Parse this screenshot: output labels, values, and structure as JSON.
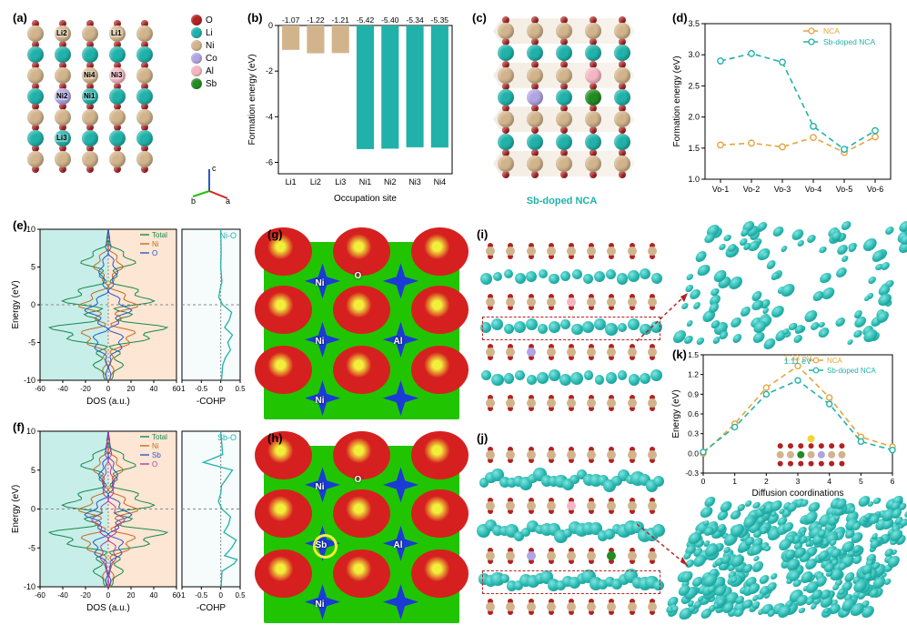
{
  "colors": {
    "O": "#b22222",
    "Li": "#20b2aa",
    "Ni": "#d2b48c",
    "Co": "#b0a4e3",
    "Al": "#f4b6c2",
    "Sb": "#228b22",
    "bar_li": "#d2b48c",
    "bar_ni": "#20b2aa",
    "nca": "#e6a43c",
    "sbdoped": "#20b2aa",
    "elf_bg": "#21c400",
    "elf_red": "#d62020",
    "elf_blue": "#1b3bd6",
    "elf_ring": "#f2ef3b",
    "density": "#2bb5ae",
    "grid": "#888888",
    "bg_left": "#c8eee9",
    "bg_right": "#fde6d4"
  },
  "typography": {
    "label_fontsize": 13,
    "axis_fontsize": 10,
    "tick_fontsize": 9
  },
  "panels": {
    "a": {
      "label": "(a)"
    },
    "b": {
      "label": "(b)",
      "type": "bar",
      "xlabel": "Occupation site",
      "ylabel": "Formation energy (eV)",
      "ylim": [
        0,
        -6.5
      ],
      "yticks": [
        0,
        -2,
        -4,
        -6
      ],
      "categories": [
        "Li1",
        "Li2",
        "Li3",
        "Ni1",
        "Ni2",
        "Ni3",
        "Ni4"
      ],
      "values": [
        -1.07,
        -1.22,
        -1.21,
        -5.42,
        -5.4,
        -5.34,
        -5.35
      ],
      "value_labels": [
        "-1.07",
        "-1.22",
        "-1.21",
        "-5.42",
        "-5.40",
        "-5.34",
        "-5.35"
      ],
      "bar_colors": [
        "#d2b48c",
        "#d2b48c",
        "#d2b48c",
        "#20b2aa",
        "#20b2aa",
        "#20b2aa",
        "#20b2aa"
      ],
      "bar_width": 0.7
    },
    "c": {
      "label": "(c)",
      "caption": "Sb-doped NCA"
    },
    "d": {
      "label": "(d)",
      "type": "line",
      "xlabel": "",
      "ylabel": "Formation energy (eV)",
      "ylim": [
        1.0,
        3.5
      ],
      "yticks": [
        1.0,
        1.5,
        2.0,
        2.5,
        3.0,
        3.5
      ],
      "categories": [
        "Vo-1",
        "Vo-2",
        "Vo-3",
        "Vo-4",
        "Vo-5",
        "Vo-6"
      ],
      "series": [
        {
          "name": "NCA",
          "color": "#e6a43c",
          "marker": "o",
          "dash": "6,4",
          "values": [
            1.55,
            1.58,
            1.52,
            1.67,
            1.43,
            1.68
          ]
        },
        {
          "name": "Sb-doped NCA",
          "color": "#20b2aa",
          "marker": "o",
          "dash": "6,4",
          "values": [
            2.9,
            3.02,
            2.88,
            1.85,
            1.48,
            1.78
          ]
        }
      ]
    },
    "e": {
      "label": "(e)",
      "type": "dos+cohp",
      "ylabel": "Energy (eV)",
      "xlabel_dos": "DOS (a.u.)",
      "xlabel_cohp": "-COHP",
      "ylim": [
        -10,
        10
      ],
      "yticks": [
        -10,
        -5,
        0,
        5,
        10
      ],
      "dos_xlim": [
        -60,
        60
      ],
      "dos_xticks": [
        -60,
        -40,
        -20,
        0,
        20,
        40,
        60
      ],
      "cohp_xlim": [
        -1.0,
        0.5
      ],
      "cohp_xticks": [
        -1.0,
        -0.5,
        0.0,
        0.5
      ],
      "cohp_label": "Ni-O",
      "cohp_color": "#20b2aa",
      "dos_series": [
        {
          "name": "Total",
          "color": "#178a49"
        },
        {
          "name": "Ni",
          "color": "#c46b1f"
        },
        {
          "name": "O",
          "color": "#2a57c9"
        }
      ],
      "cohp_curve": [
        [
          -10,
          0.02
        ],
        [
          -8,
          0.05
        ],
        [
          -7,
          0.12
        ],
        [
          -6,
          0.25
        ],
        [
          -5,
          0.18
        ],
        [
          -4,
          0.3
        ],
        [
          -3,
          0.1
        ],
        [
          -2,
          0.22
        ],
        [
          -1,
          0.28
        ],
        [
          0,
          0.05
        ],
        [
          1,
          -0.05
        ],
        [
          2,
          -0.02
        ],
        [
          3,
          0.03
        ],
        [
          5,
          0.0
        ],
        [
          7,
          0.01
        ],
        [
          10,
          0.0
        ]
      ]
    },
    "f": {
      "label": "(f)",
      "type": "dos+cohp",
      "ylabel": "Energy (eV)",
      "xlabel_dos": "DOS (a.u.)",
      "xlabel_cohp": "-COHP",
      "ylim": [
        -10,
        10
      ],
      "yticks": [
        -10,
        -5,
        0,
        5,
        10
      ],
      "dos_xlim": [
        -60,
        60
      ],
      "dos_xticks": [
        -60,
        -40,
        -20,
        0,
        20,
        40,
        60
      ],
      "cohp_xlim": [
        -1.0,
        0.5
      ],
      "cohp_xticks": [
        -1.0,
        -0.5,
        0.0,
        0.5
      ],
      "cohp_label": "Sb-O",
      "cohp_color": "#20b2aa",
      "dos_series": [
        {
          "name": "Total",
          "color": "#178a49"
        },
        {
          "name": "Ni",
          "color": "#c46b1f"
        },
        {
          "name": "Sb",
          "color": "#2a57c9"
        },
        {
          "name": "O",
          "color": "#b03a9e"
        }
      ],
      "cohp_curve": [
        [
          -10,
          0.01
        ],
        [
          -8,
          0.03
        ],
        [
          -7,
          0.35
        ],
        [
          -6.5,
          0.42
        ],
        [
          -6,
          0.1
        ],
        [
          -5,
          0.28
        ],
        [
          -4,
          0.4
        ],
        [
          -3,
          0.08
        ],
        [
          -2,
          0.2
        ],
        [
          -1,
          0.25
        ],
        [
          0,
          0.03
        ],
        [
          1,
          -0.06
        ],
        [
          2,
          0.0
        ],
        [
          3,
          0.02
        ],
        [
          5,
          0.3
        ],
        [
          6,
          -0.45
        ],
        [
          7,
          0.05
        ],
        [
          10,
          0.0
        ]
      ]
    },
    "g": {
      "label": "(g)",
      "type": "elf",
      "site_labels": [
        "Ni",
        "Ni",
        "Ni",
        "O",
        "Al"
      ],
      "atoms": [
        {
          "kind": "Ni"
        },
        {
          "kind": "Ni"
        },
        {
          "kind": "Ni"
        },
        {
          "kind": "Al"
        }
      ]
    },
    "h": {
      "label": "(h)",
      "type": "elf",
      "site_labels": [
        "Ni",
        "Sb",
        "Ni",
        "O",
        "Al"
      ],
      "atoms": [
        {
          "kind": "Ni"
        },
        {
          "kind": "Sb"
        },
        {
          "kind": "Ni"
        },
        {
          "kind": "Al"
        }
      ]
    },
    "i": {
      "label": "(i)",
      "type": "md_density",
      "has_sb": false
    },
    "j": {
      "label": "(j)",
      "type": "md_density",
      "has_sb": true
    },
    "k": {
      "label": "(k)",
      "type": "neb",
      "xlabel": "Diffusion coordinations",
      "ylabel": "Energy (eV)",
      "xlim": [
        0,
        6
      ],
      "xticks": [
        0,
        1,
        2,
        3,
        4,
        5,
        6
      ],
      "ylim": [
        -0.3,
        1.5
      ],
      "yticks": [
        -0.3,
        0.0,
        0.3,
        0.6,
        0.9,
        1.2,
        1.5
      ],
      "series": [
        {
          "name": "NCA",
          "color": "#e6a43c",
          "dash": "6,4",
          "values": [
            [
              0,
              0.0
            ],
            [
              1,
              0.45
            ],
            [
              2,
              1.0
            ],
            [
              3,
              1.33
            ],
            [
              4,
              0.85
            ],
            [
              5,
              0.25
            ],
            [
              6,
              0.1
            ]
          ],
          "peak_label": "1.33 eV"
        },
        {
          "name": "Sb-doped NCA",
          "color": "#20b2aa",
          "dash": "6,4",
          "values": [
            [
              0,
              0.02
            ],
            [
              1,
              0.4
            ],
            [
              2,
              0.9
            ],
            [
              3,
              1.11
            ],
            [
              4,
              0.75
            ],
            [
              5,
              0.18
            ],
            [
              6,
              0.05
            ]
          ],
          "peak_label": "1.11 eV"
        }
      ]
    }
  },
  "legend_species": [
    {
      "name": "O",
      "color_key": "O"
    },
    {
      "name": "Li",
      "color_key": "Li"
    },
    {
      "name": "Ni",
      "color_key": "Ni"
    },
    {
      "name": "Co",
      "color_key": "Co"
    },
    {
      "name": "Al",
      "color_key": "Al"
    },
    {
      "name": "Sb",
      "color_key": "Sb"
    }
  ],
  "structure_a": {
    "site_tags": [
      "Li1",
      "Li2",
      "Li3",
      "Ni1",
      "Ni2",
      "Ni3",
      "Ni4"
    ],
    "row_species": [
      "Ni",
      "Li",
      "Ni",
      "Li",
      "Ni",
      "Li",
      "Ni"
    ],
    "special": {
      "Co": {
        "row": 3,
        "col": 1
      },
      "Al": {
        "row": 2,
        "col": 3
      },
      "Sb": {
        "row": 5,
        "col": 2
      }
    }
  }
}
